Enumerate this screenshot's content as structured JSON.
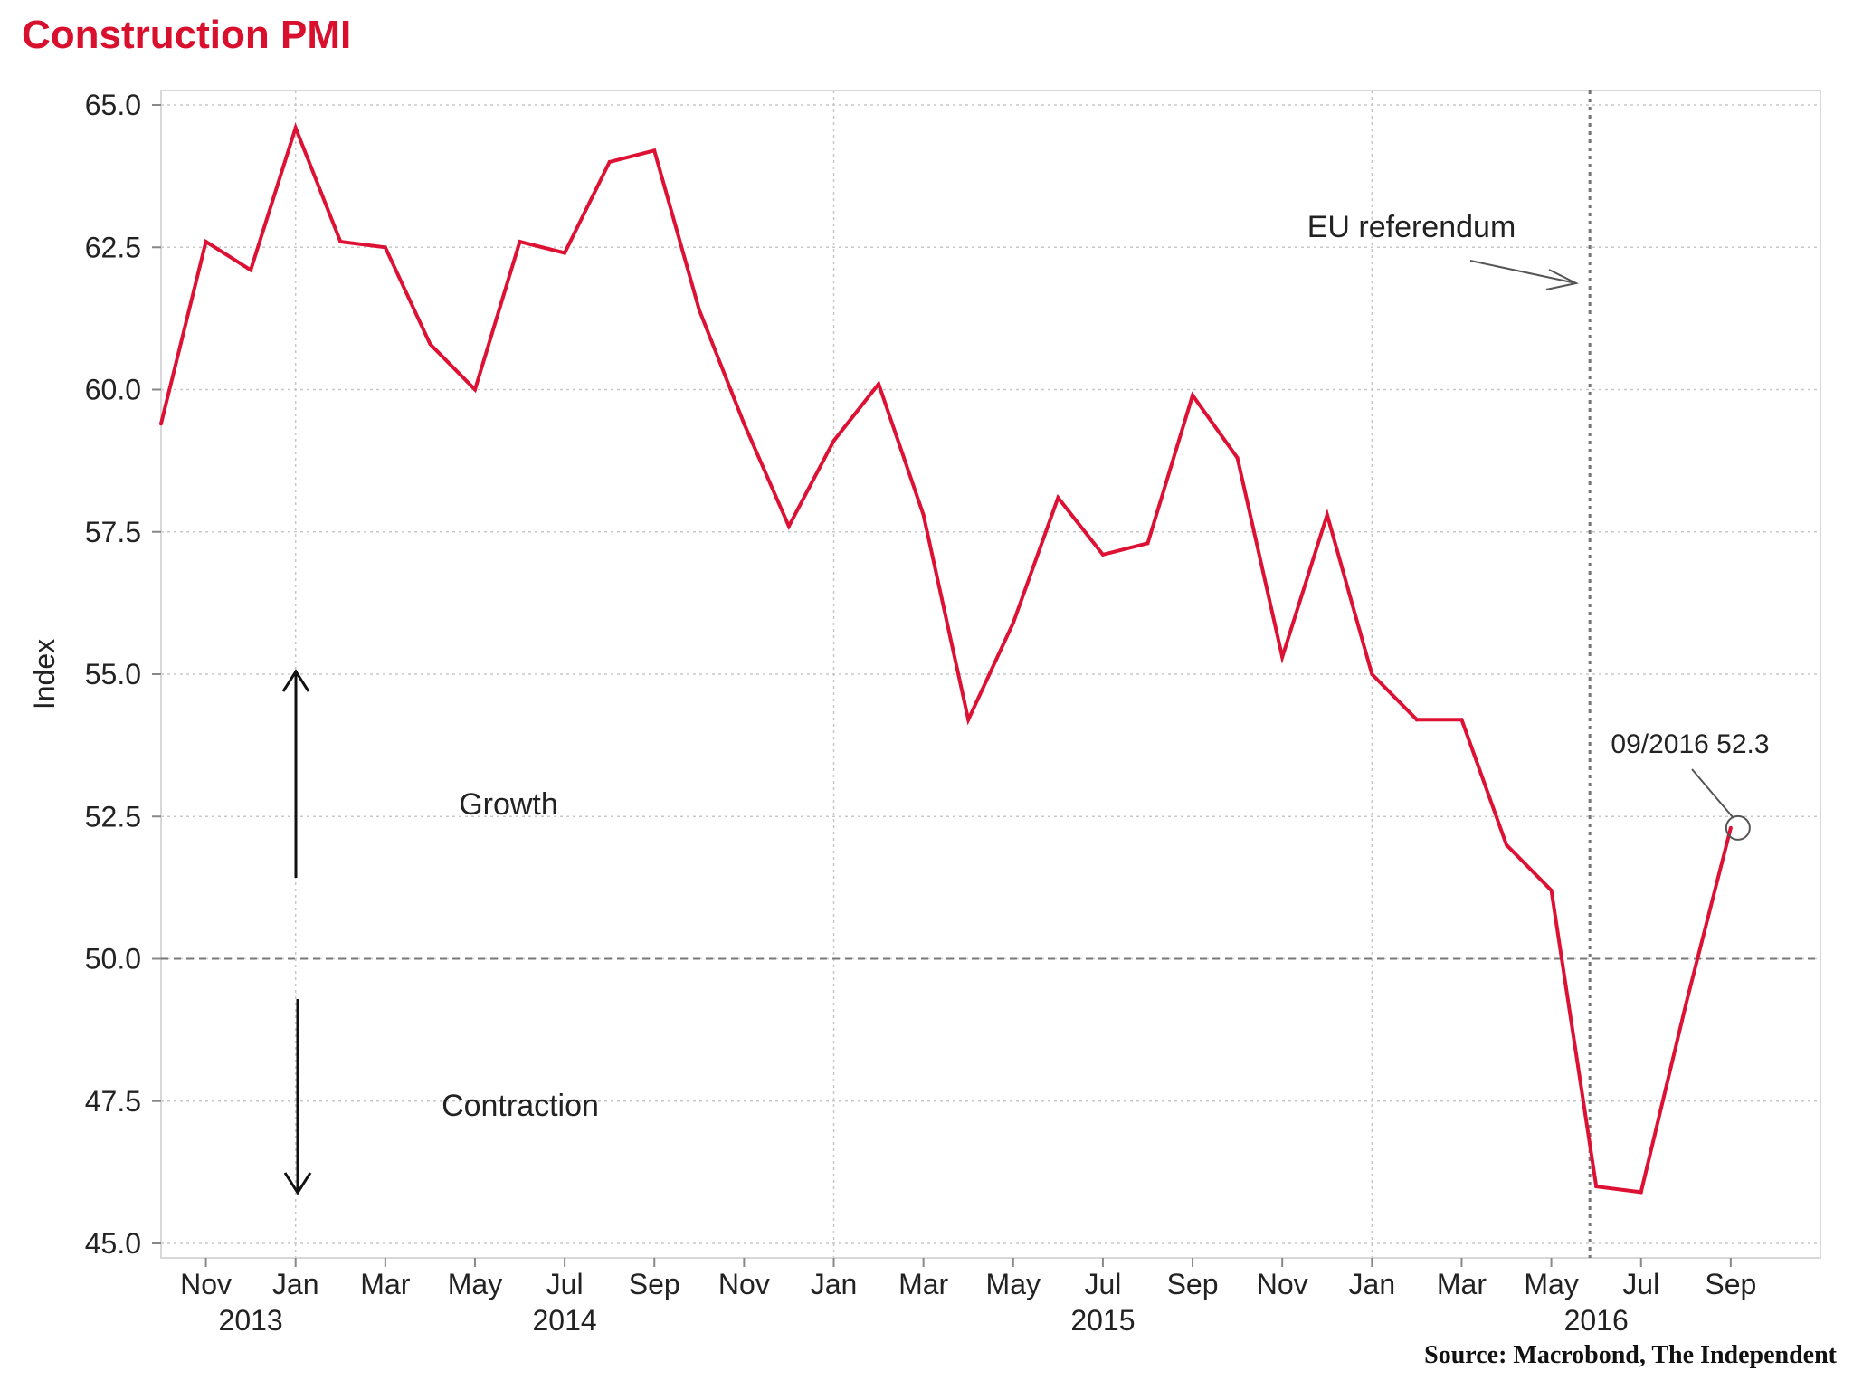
{
  "chart_data": {
    "type": "line",
    "title": "Construction PMI",
    "ylabel": "Index",
    "xlabel": "",
    "ylim": [
      45.0,
      65.0
    ],
    "yticks": [
      "45.0",
      "47.5",
      "50.0",
      "52.5",
      "55.0",
      "57.5",
      "60.0",
      "62.5",
      "65.0"
    ],
    "xticks": [
      "Nov",
      "Jan",
      "Mar",
      "May",
      "Jul",
      "Sep",
      "Nov",
      "Jan",
      "Mar",
      "May",
      "Jul",
      "Sep",
      "Nov",
      "Jan",
      "Mar",
      "May",
      "Jul",
      "Sep"
    ],
    "year_labels": [
      "2013",
      "2014",
      "2015",
      "2016"
    ],
    "x_range": [
      "2013-10",
      "2016-11"
    ],
    "grid": true,
    "series": [
      {
        "color": "#dd1133",
        "x": [
          "2013-10",
          "2013-11",
          "2013-12",
          "2014-01",
          "2014-02",
          "2014-03",
          "2014-04",
          "2014-05",
          "2014-06",
          "2014-07",
          "2014-08",
          "2014-09",
          "2014-10",
          "2014-11",
          "2014-12",
          "2015-01",
          "2015-02",
          "2015-03",
          "2015-04",
          "2015-05",
          "2015-06",
          "2015-07",
          "2015-08",
          "2015-09",
          "2015-10",
          "2015-11",
          "2015-12",
          "2016-01",
          "2016-02",
          "2016-03",
          "2016-04",
          "2016-05",
          "2016-06",
          "2016-07",
          "2016-08",
          "2016-09"
        ],
        "values": [
          59.4,
          62.6,
          62.1,
          64.6,
          62.6,
          62.5,
          60.8,
          60.0,
          62.6,
          62.4,
          64.0,
          64.2,
          61.4,
          59.4,
          57.6,
          59.1,
          60.1,
          57.8,
          54.2,
          55.9,
          58.1,
          57.1,
          57.3,
          59.9,
          58.8,
          55.3,
          57.8,
          55.0,
          54.2,
          54.2,
          52.0,
          51.2,
          46.0,
          45.9,
          49.2,
          52.3
        ]
      }
    ],
    "reference_line": 50.0,
    "annotations": {
      "referendum_label": "EU referendum",
      "growth_label": "Growth",
      "contraction_label": "Contraction",
      "last_point_label": "09/2016 52.3"
    }
  },
  "source": "Source: Macrobond, The Independent"
}
